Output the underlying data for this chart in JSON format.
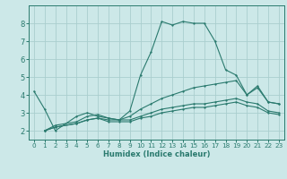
{
  "xlabel": "Humidex (Indice chaleur)",
  "xlim": [
    -0.5,
    23.5
  ],
  "ylim": [
    1.5,
    9.0
  ],
  "yticks": [
    2,
    3,
    4,
    5,
    6,
    7,
    8
  ],
  "xticks": [
    0,
    1,
    2,
    3,
    4,
    5,
    6,
    7,
    8,
    9,
    10,
    11,
    12,
    13,
    14,
    15,
    16,
    17,
    18,
    19,
    20,
    21,
    22,
    23
  ],
  "bg_color": "#cce8e8",
  "line_color": "#2a7a6e",
  "grid_color": "#aacece",
  "lines": [
    {
      "x": [
        0,
        1,
        2,
        4,
        5,
        6,
        7,
        8,
        9,
        10,
        11,
        12,
        13,
        14,
        15,
        16,
        17,
        18,
        19,
        20,
        21,
        22,
        23
      ],
      "y": [
        4.2,
        3.2,
        2.0,
        2.8,
        3.0,
        2.8,
        2.7,
        2.6,
        3.1,
        5.1,
        6.4,
        8.1,
        7.9,
        8.1,
        8.0,
        8.0,
        7.0,
        5.4,
        5.1,
        4.0,
        4.5,
        3.6,
        3.5
      ]
    },
    {
      "x": [
        1,
        2,
        4,
        5,
        6,
        7,
        8,
        9,
        10,
        11,
        12,
        13,
        14,
        15,
        16,
        17,
        18,
        19,
        20,
        21,
        22,
        23
      ],
      "y": [
        2.0,
        2.2,
        2.4,
        2.6,
        2.7,
        2.6,
        2.6,
        2.8,
        3.2,
        3.5,
        3.8,
        4.0,
        4.2,
        4.4,
        4.5,
        4.6,
        4.7,
        4.8,
        4.0,
        4.4,
        3.6,
        3.5
      ]
    },
    {
      "x": [
        1,
        2,
        4,
        5,
        6,
        7,
        8,
        9,
        10,
        11,
        12,
        13,
        14,
        15,
        16,
        17,
        18,
        19,
        20,
        21,
        22,
        23
      ],
      "y": [
        2.0,
        2.3,
        2.5,
        2.8,
        2.9,
        2.7,
        2.6,
        2.6,
        2.8,
        3.0,
        3.2,
        3.3,
        3.4,
        3.5,
        3.5,
        3.6,
        3.7,
        3.8,
        3.6,
        3.5,
        3.1,
        3.0
      ]
    },
    {
      "x": [
        1,
        2,
        4,
        5,
        6,
        7,
        8,
        9,
        10,
        11,
        12,
        13,
        14,
        15,
        16,
        17,
        18,
        19,
        20,
        21,
        22,
        23
      ],
      "y": [
        2.0,
        2.2,
        2.4,
        2.6,
        2.7,
        2.5,
        2.5,
        2.5,
        2.7,
        2.8,
        3.0,
        3.1,
        3.2,
        3.3,
        3.3,
        3.4,
        3.5,
        3.6,
        3.4,
        3.3,
        3.0,
        2.9
      ]
    }
  ]
}
